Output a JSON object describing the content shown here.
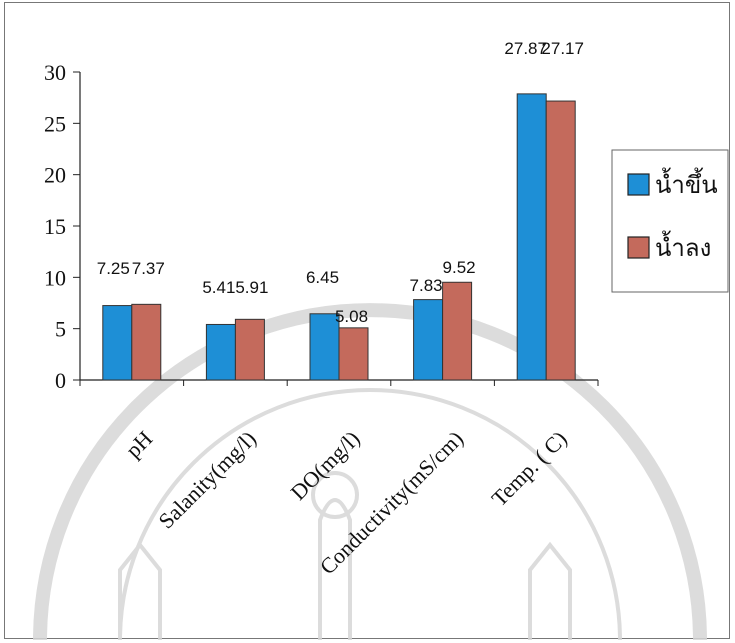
{
  "chart_data": {
    "type": "bar",
    "categories": [
      "pH",
      "Salanity(mg/l)",
      "DO(mg/l)",
      "Conductivity(mS/cm)",
      "Temp. ( C)"
    ],
    "series": [
      {
        "name": "น้ำขึ้น",
        "values": [
          7.25,
          5.41,
          6.45,
          7.83,
          27.87
        ],
        "color": "#1e8fd6"
      },
      {
        "name": "น้ำลง",
        "values": [
          7.37,
          5.91,
          5.08,
          9.52,
          27.17
        ],
        "color": "#c46a5c"
      }
    ],
    "data_labels": [
      [
        "7.25",
        "5.41",
        "6.45",
        "7.83",
        "27.87"
      ],
      [
        "7.37",
        "5.91",
        "5.08",
        "9.52",
        "27.17"
      ]
    ],
    "y_ticks": [
      "0",
      "5",
      "10",
      "15",
      "20",
      "25",
      "30"
    ],
    "ylim": [
      0,
      30
    ],
    "legend_position": "right",
    "title": "",
    "xlabel": "",
    "ylabel": ""
  }
}
